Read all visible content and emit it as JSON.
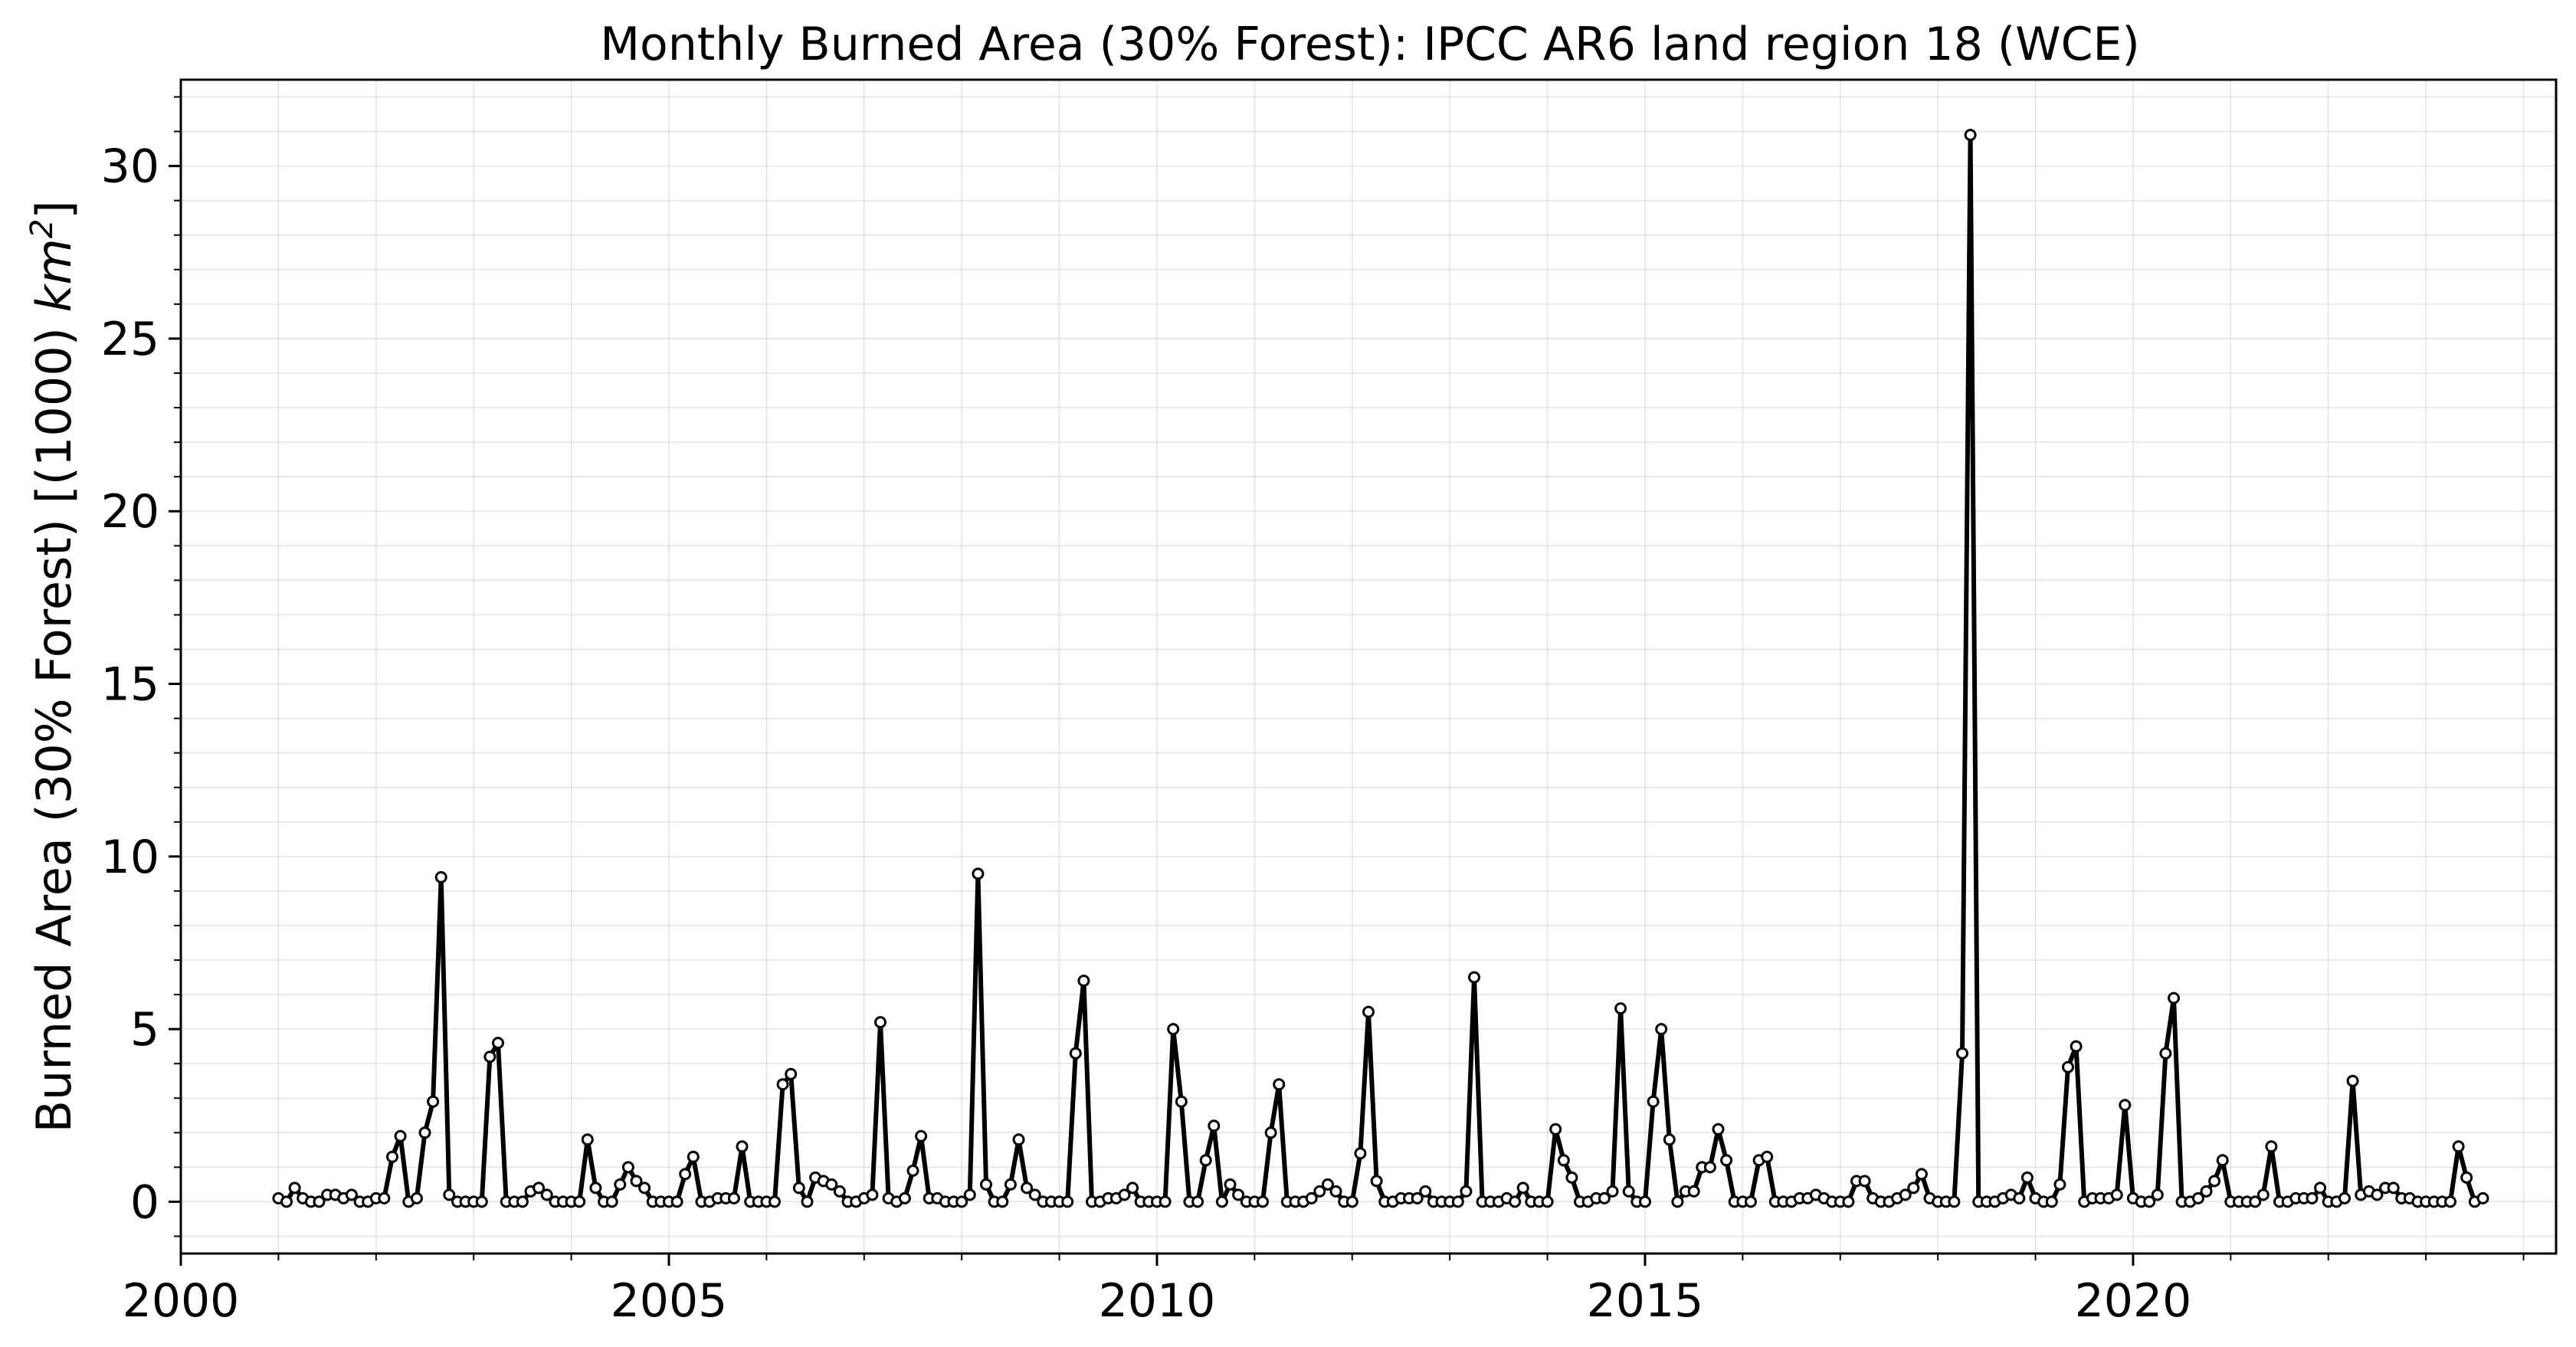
{
  "chart_data": {
    "type": "line",
    "title": "Monthly Burned Area (30% Forest): IPCC AR6 land region 18 (WCE)",
    "xlabel": "",
    "ylabel": "Burned Area (30% Forest) [(1000) km²]",
    "ylabel_parts": {
      "prefix": "Burned Area (30% Forest) [(1000) ",
      "unit": "km",
      "exponent": "2",
      "suffix": "]"
    },
    "x_start": "2001-01",
    "x_end": "2023-04",
    "xlim": [
      "2000-01",
      "2024-05"
    ],
    "ylim": [
      -1.5,
      32.5
    ],
    "x_major_ticks": [
      "2000",
      "2005",
      "2010",
      "2015",
      "2020"
    ],
    "y_major_ticks": [
      "0",
      "5",
      "10",
      "15",
      "20",
      "25",
      "30"
    ],
    "grid": true,
    "legend": "none",
    "line_color": "#000000",
    "marker_face_color": "#ffffff",
    "series": [
      {
        "values": [
          0.1,
          0.0,
          0.4,
          0.1,
          0.0,
          0.0,
          0.2,
          0.2,
          0.1,
          0.2,
          0.0,
          0.0,
          0.1,
          0.1,
          1.3,
          1.9,
          0.0,
          0.1,
          2.0,
          2.9,
          9.4,
          0.2,
          0.0,
          0.0,
          0.0,
          0.0,
          4.2,
          4.6,
          0.0,
          0.0,
          0.0,
          0.3,
          0.4,
          0.2,
          0.0,
          0.0,
          0.0,
          0.0,
          1.8,
          0.4,
          0.0,
          0.0,
          0.5,
          1.0,
          0.6,
          0.4,
          0.0,
          0.0,
          0.0,
          0.0,
          0.8,
          1.3,
          0.0,
          0.0,
          0.1,
          0.1,
          0.1,
          1.6,
          0.0,
          0.0,
          0.0,
          0.0,
          3.4,
          3.7,
          0.4,
          0.0,
          0.7,
          0.6,
          0.5,
          0.3,
          0.0,
          0.0,
          0.1,
          0.2,
          5.2,
          0.1,
          0.0,
          0.1,
          0.9,
          1.9,
          0.1,
          0.1,
          0.0,
          0.0,
          0.0,
          0.2,
          9.5,
          0.5,
          0.0,
          0.0,
          0.5,
          1.8,
          0.4,
          0.2,
          0.0,
          0.0,
          0.0,
          0.0,
          4.3,
          6.4,
          0.0,
          0.0,
          0.1,
          0.1,
          0.2,
          0.4,
          0.0,
          0.0,
          0.0,
          0.0,
          5.0,
          2.9,
          0.0,
          0.0,
          1.2,
          2.2,
          0.0,
          0.5,
          0.2,
          0.0,
          0.0,
          0.0,
          2.0,
          3.4,
          0.0,
          0.0,
          0.0,
          0.1,
          0.3,
          0.5,
          0.3,
          0.0,
          0.0,
          1.4,
          5.5,
          0.6,
          0.0,
          0.0,
          0.1,
          0.1,
          0.1,
          0.3,
          0.0,
          0.0,
          0.0,
          0.0,
          0.3,
          6.5,
          0.0,
          0.0,
          0.0,
          0.1,
          0.0,
          0.4,
          0.0,
          0.0,
          0.0,
          2.1,
          1.2,
          0.7,
          0.0,
          0.0,
          0.1,
          0.1,
          0.3,
          5.6,
          0.3,
          0.0,
          0.0,
          2.9,
          5.0,
          1.8,
          0.0,
          0.3,
          0.3,
          1.0,
          1.0,
          2.1,
          1.2,
          0.0,
          0.0,
          0.0,
          1.2,
          1.3,
          0.0,
          0.0,
          0.0,
          0.1,
          0.1,
          0.2,
          0.1,
          0.0,
          0.0,
          0.0,
          0.6,
          0.6,
          0.1,
          0.0,
          0.0,
          0.1,
          0.2,
          0.4,
          0.8,
          0.1,
          0.0,
          0.0,
          0.0,
          4.3,
          30.9,
          0.0,
          0.0,
          0.0,
          0.1,
          0.2,
          0.1,
          0.7,
          0.1,
          0.0,
          0.0,
          0.5,
          3.9,
          4.5,
          0.0,
          0.1,
          0.1,
          0.1,
          0.2,
          2.8,
          0.1,
          0.0,
          0.0,
          0.2,
          4.3,
          5.9,
          0.0,
          0.0,
          0.1,
          0.3,
          0.6,
          1.2,
          0.0,
          0.0,
          0.0,
          0.0,
          0.2,
          1.6,
          0.0,
          0.0,
          0.1,
          0.1,
          0.1,
          0.4,
          0.0,
          0.0,
          0.1,
          3.5,
          0.2,
          0.3,
          0.2,
          0.4,
          0.4,
          0.1,
          0.1,
          0.0,
          0.0,
          0.0,
          0.0,
          0.0,
          1.6,
          0.7,
          0.0,
          0.1
        ]
      }
    ]
  }
}
